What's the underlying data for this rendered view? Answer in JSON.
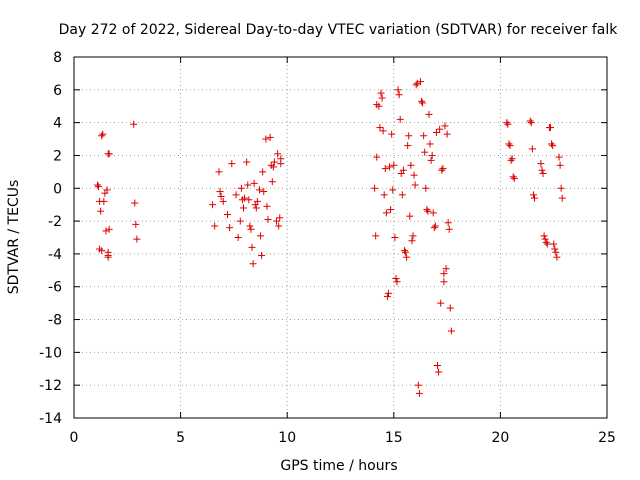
{
  "chart_data": {
    "type": "scatter",
    "title": "Day 272 of 2022, Sidereal Day-to-day VTEC variation (SDTVAR) for receiver falk",
    "xlabel": "GPS time / hours",
    "ylabel": "SDTVAR / TECUs",
    "xlim": [
      0,
      25
    ],
    "ylim": [
      -14,
      8
    ],
    "xticks": [
      0,
      5,
      10,
      15,
      20,
      25
    ],
    "yticks": [
      -14,
      -12,
      -10,
      -8,
      -6,
      -4,
      -2,
      0,
      2,
      4,
      6,
      8
    ],
    "grid": true,
    "marker": "+",
    "color": "#dd0000",
    "series": [
      {
        "name": "SDTVAR",
        "points": [
          [
            1.1,
            0.2
          ],
          [
            1.15,
            0.1
          ],
          [
            1.2,
            -0.8
          ],
          [
            1.25,
            -1.4
          ],
          [
            1.3,
            3.2
          ],
          [
            1.35,
            3.3
          ],
          [
            1.4,
            -0.8
          ],
          [
            1.45,
            -0.3
          ],
          [
            1.5,
            -2.6
          ],
          [
            1.55,
            -0.1
          ],
          [
            1.2,
            -3.7
          ],
          [
            1.3,
            -3.8
          ],
          [
            1.6,
            -3.9
          ],
          [
            1.6,
            -4.1
          ],
          [
            1.6,
            -4.2
          ],
          [
            1.65,
            -2.5
          ],
          [
            1.6,
            2.1
          ],
          [
            1.65,
            2.1
          ],
          [
            2.8,
            3.9
          ],
          [
            2.85,
            -0.9
          ],
          [
            2.9,
            -2.2
          ],
          [
            2.95,
            -3.1
          ],
          [
            6.5,
            -1.0
          ],
          [
            6.6,
            -2.3
          ],
          [
            6.8,
            1.0
          ],
          [
            6.85,
            -0.2
          ],
          [
            6.9,
            -0.5
          ],
          [
            7.0,
            -0.8
          ],
          [
            7.2,
            -1.6
          ],
          [
            7.3,
            -2.4
          ],
          [
            7.4,
            1.5
          ],
          [
            7.6,
            -0.4
          ],
          [
            7.7,
            -3.0
          ],
          [
            7.8,
            -2.0
          ],
          [
            7.85,
            0.0
          ],
          [
            7.9,
            -0.7
          ],
          [
            7.95,
            -1.2
          ],
          [
            8.0,
            -0.6
          ],
          [
            8.1,
            1.6
          ],
          [
            8.15,
            0.2
          ],
          [
            8.2,
            -0.7
          ],
          [
            8.25,
            -2.3
          ],
          [
            8.3,
            -2.5
          ],
          [
            8.35,
            -3.6
          ],
          [
            8.4,
            -4.6
          ],
          [
            8.45,
            0.3
          ],
          [
            8.5,
            -1.0
          ],
          [
            8.55,
            -1.2
          ],
          [
            8.6,
            -0.8
          ],
          [
            8.7,
            -0.1
          ],
          [
            8.75,
            -2.9
          ],
          [
            8.8,
            -4.1
          ],
          [
            8.85,
            1.0
          ],
          [
            8.9,
            -0.2
          ],
          [
            9.0,
            3.0
          ],
          [
            9.05,
            -1.1
          ],
          [
            9.1,
            -1.9
          ],
          [
            9.2,
            3.1
          ],
          [
            9.25,
            1.4
          ],
          [
            9.3,
            0.4
          ],
          [
            9.35,
            1.3
          ],
          [
            9.4,
            1.6
          ],
          [
            9.5,
            -2.0
          ],
          [
            9.55,
            2.1
          ],
          [
            9.6,
            -2.3
          ],
          [
            9.65,
            -1.8
          ],
          [
            9.7,
            1.8
          ],
          [
            9.7,
            1.5
          ],
          [
            14.1,
            0.0
          ],
          [
            14.15,
            -2.9
          ],
          [
            14.2,
            1.9
          ],
          [
            14.2,
            5.1
          ],
          [
            14.3,
            5.0
          ],
          [
            14.35,
            3.7
          ],
          [
            14.4,
            5.8
          ],
          [
            14.45,
            5.5
          ],
          [
            14.5,
            3.5
          ],
          [
            14.55,
            -0.4
          ],
          [
            14.6,
            1.2
          ],
          [
            14.65,
            -1.5
          ],
          [
            14.7,
            -6.6
          ],
          [
            14.75,
            -6.4
          ],
          [
            14.8,
            1.3
          ],
          [
            14.85,
            -1.3
          ],
          [
            14.9,
            3.3
          ],
          [
            14.95,
            -0.1
          ],
          [
            15.0,
            1.4
          ],
          [
            15.05,
            -3.0
          ],
          [
            15.1,
            -5.5
          ],
          [
            15.15,
            -5.7
          ],
          [
            15.2,
            6.0
          ],
          [
            15.25,
            5.7
          ],
          [
            15.3,
            4.2
          ],
          [
            15.35,
            0.9
          ],
          [
            15.4,
            -0.4
          ],
          [
            15.45,
            1.1
          ],
          [
            15.5,
            -3.8
          ],
          [
            15.55,
            -3.9
          ],
          [
            15.6,
            -4.2
          ],
          [
            15.65,
            2.6
          ],
          [
            15.7,
            3.2
          ],
          [
            15.75,
            -1.7
          ],
          [
            15.8,
            1.4
          ],
          [
            15.85,
            -3.2
          ],
          [
            15.9,
            -2.9
          ],
          [
            15.95,
            0.8
          ],
          [
            16.0,
            0.2
          ],
          [
            16.05,
            6.3
          ],
          [
            16.1,
            6.4
          ],
          [
            16.15,
            -12.0
          ],
          [
            16.2,
            -12.5
          ],
          [
            16.25,
            6.5
          ],
          [
            16.3,
            5.3
          ],
          [
            16.35,
            5.2
          ],
          [
            16.4,
            3.2
          ],
          [
            16.45,
            2.2
          ],
          [
            16.5,
            0.0
          ],
          [
            16.55,
            -1.3
          ],
          [
            16.6,
            -1.4
          ],
          [
            16.65,
            4.5
          ],
          [
            16.7,
            2.7
          ],
          [
            16.75,
            1.7
          ],
          [
            16.8,
            2.0
          ],
          [
            16.85,
            -1.5
          ],
          [
            16.9,
            -2.4
          ],
          [
            16.95,
            -2.3
          ],
          [
            17.0,
            3.4
          ],
          [
            17.05,
            -10.8
          ],
          [
            17.1,
            -11.2
          ],
          [
            17.15,
            3.6
          ],
          [
            17.2,
            -7.0
          ],
          [
            17.25,
            1.1
          ],
          [
            17.3,
            1.2
          ],
          [
            17.35,
            -5.2
          ],
          [
            17.35,
            -5.7
          ],
          [
            17.4,
            3.8
          ],
          [
            17.45,
            -4.9
          ],
          [
            17.5,
            3.3
          ],
          [
            17.55,
            -2.1
          ],
          [
            17.6,
            -2.5
          ],
          [
            17.65,
            -7.3
          ],
          [
            17.7,
            -8.7
          ],
          [
            20.3,
            4.0
          ],
          [
            20.35,
            3.9
          ],
          [
            20.4,
            2.7
          ],
          [
            20.45,
            2.6
          ],
          [
            20.5,
            1.7
          ],
          [
            20.55,
            1.8
          ],
          [
            20.6,
            0.7
          ],
          [
            20.65,
            0.6
          ],
          [
            21.4,
            4.1
          ],
          [
            21.45,
            4.0
          ],
          [
            21.5,
            2.4
          ],
          [
            21.55,
            -0.4
          ],
          [
            21.6,
            -0.6
          ],
          [
            21.9,
            1.5
          ],
          [
            21.95,
            1.1
          ],
          [
            22.0,
            0.9
          ],
          [
            22.05,
            -2.9
          ],
          [
            22.1,
            -3.1
          ],
          [
            22.15,
            -3.3
          ],
          [
            22.2,
            -3.4
          ],
          [
            22.3,
            3.7
          ],
          [
            22.35,
            3.7
          ],
          [
            22.4,
            2.7
          ],
          [
            22.45,
            2.6
          ],
          [
            22.5,
            -3.4
          ],
          [
            22.55,
            -3.7
          ],
          [
            22.6,
            -3.9
          ],
          [
            22.65,
            -4.2
          ],
          [
            22.75,
            1.9
          ],
          [
            22.8,
            1.4
          ],
          [
            22.85,
            0.0
          ],
          [
            22.9,
            -0.6
          ]
        ]
      }
    ]
  }
}
